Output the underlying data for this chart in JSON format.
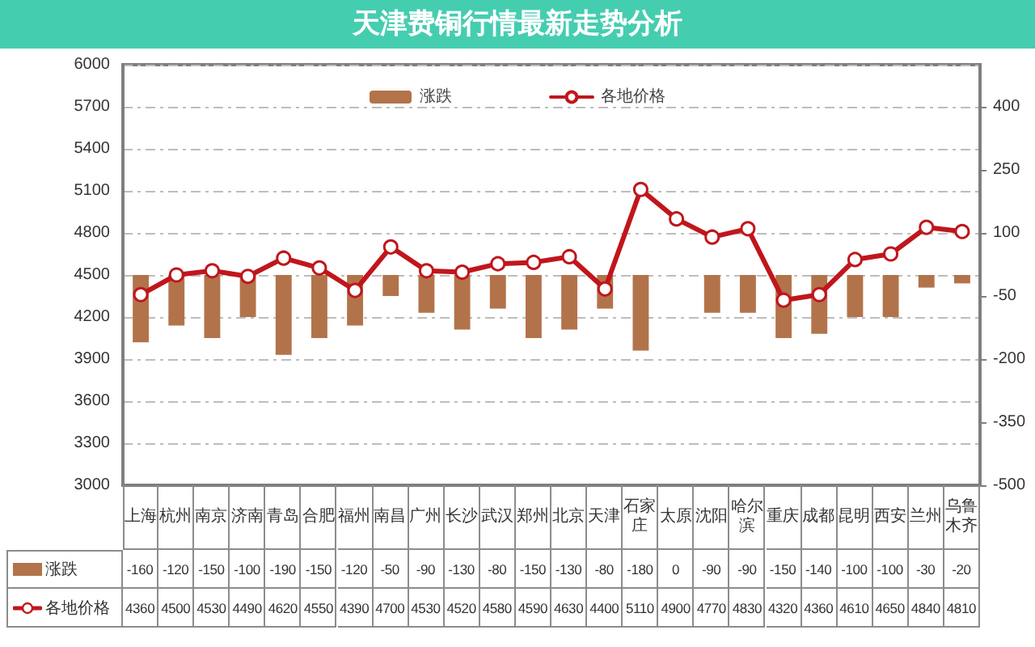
{
  "chart_data": {
    "type": "bar",
    "title": "天津费铜行情最新走势分析",
    "categories": [
      "上海",
      "杭州",
      "南京",
      "济南",
      "青岛",
      "合肥",
      "福州",
      "南昌",
      "广州",
      "长沙",
      "武汉",
      "郑州",
      "北京",
      "天津",
      "石家庄",
      "太原",
      "沈阳",
      "哈尔滨",
      "重庆",
      "成都",
      "昆明",
      "西安",
      "兰州",
      "乌鲁木齐"
    ],
    "series": [
      {
        "name": "涨跌",
        "axis": "y2",
        "color": "#b3734a",
        "values": [
          -160,
          -120,
          -150,
          -100,
          -190,
          -150,
          -120,
          -50,
          -90,
          -130,
          -80,
          -150,
          -130,
          -80,
          -180,
          0,
          -90,
          -90,
          -150,
          -140,
          -100,
          -100,
          -30,
          -20
        ]
      },
      {
        "name": "各地价格",
        "type": "line",
        "color": "#c0161c",
        "values": [
          4360,
          4500,
          4530,
          4490,
          4620,
          4550,
          4390,
          4700,
          4530,
          4520,
          4580,
          4590,
          4630,
          4400,
          5110,
          4900,
          4770,
          4830,
          4320,
          4360,
          4610,
          4650,
          4840,
          4810
        ]
      }
    ],
    "ylim": [
      3000,
      6000
    ],
    "yticks": [
      3000,
      3300,
      3600,
      3900,
      4200,
      4500,
      4800,
      5100,
      5400,
      5700,
      6000
    ],
    "y2lim": [
      -500,
      500
    ],
    "y2ticks": [
      -500,
      -350,
      -200,
      -50,
      100,
      250,
      400
    ],
    "grid": "y",
    "legend": "top",
    "marker": "circle",
    "data_labels": true
  }
}
